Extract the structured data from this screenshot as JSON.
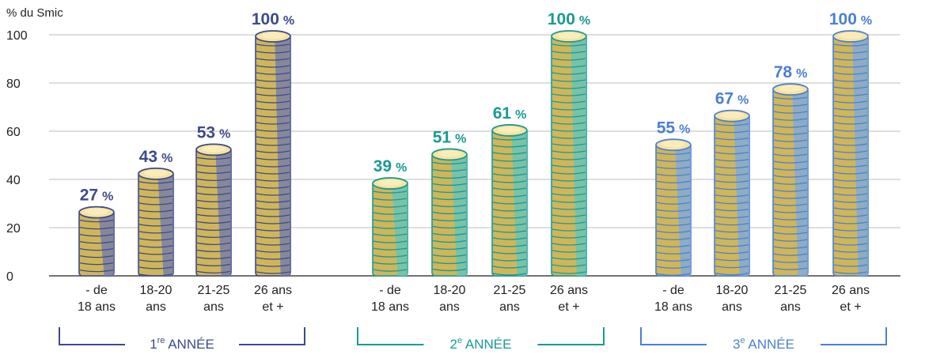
{
  "chart_data": {
    "type": "bar",
    "ylabel": "% du Smic",
    "ylim": [
      0,
      100
    ],
    "yticks": [
      "0",
      "20",
      "40",
      "60",
      "80",
      "100"
    ],
    "grid": true,
    "value_suffix": "%",
    "groups": [
      {
        "label_main": "1",
        "label_sup": "re",
        "label_rest": " ANNÉE",
        "color": "#3d4a8c",
        "coin_color": "#6e78b0",
        "categories": [
          [
            "- de",
            "18 ans"
          ],
          [
            "18-20",
            "ans"
          ],
          [
            "21-25",
            "ans"
          ],
          [
            "26 ans",
            "et +"
          ]
        ],
        "values": [
          27,
          43,
          53,
          100
        ]
      },
      {
        "label_main": "2",
        "label_sup": "e",
        "label_rest": " ANNÉE",
        "color": "#1a9a93",
        "coin_color": "#5cc6c1",
        "categories": [
          [
            "- de",
            "18 ans"
          ],
          [
            "18-20",
            "ans"
          ],
          [
            "21-25",
            "ans"
          ],
          [
            "26 ans",
            "et +"
          ]
        ],
        "values": [
          39,
          51,
          61,
          100
        ]
      },
      {
        "label_main": "3",
        "label_sup": "e",
        "label_rest": " ANNÉE",
        "color": "#4a7fd4",
        "coin_color": "#78a8e6",
        "categories": [
          [
            "- de",
            "18 ans"
          ],
          [
            "18-20",
            "ans"
          ],
          [
            "21-25",
            "ans"
          ],
          [
            "26 ans",
            "et +"
          ]
        ],
        "values": [
          55,
          67,
          78,
          100
        ]
      }
    ]
  }
}
